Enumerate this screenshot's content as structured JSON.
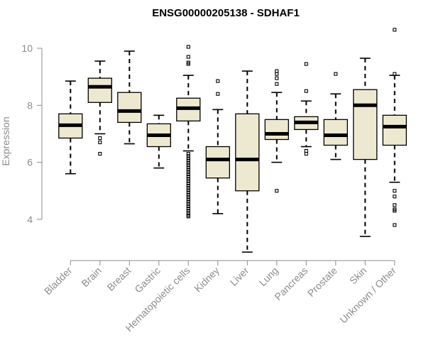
{
  "chart_data": {
    "type": "box",
    "title": "ENSG00000205138 - SDHAF1",
    "xlabel": "",
    "ylabel": "Expression",
    "ylim": [
      2.7,
      10.8
    ],
    "yticks": [
      4,
      6,
      8,
      10
    ],
    "grid": false,
    "box_color": "#ede8d0",
    "categories": [
      "Bladder",
      "Brain",
      "Breast",
      "Gastric",
      "Hematopoietic cells",
      "Kidney",
      "Liver",
      "Lung",
      "Pancreas",
      "Prostate",
      "Skin",
      "Unknown / Other"
    ],
    "series": [
      {
        "category": "Bladder",
        "min": 5.6,
        "q1": 6.85,
        "median": 7.3,
        "q3": 7.7,
        "max": 8.85,
        "outliers": []
      },
      {
        "category": "Brain",
        "min": 7.0,
        "q1": 8.1,
        "median": 8.65,
        "q3": 8.95,
        "max": 9.55,
        "outliers": [
          6.85,
          6.7,
          6.3
        ]
      },
      {
        "category": "Breast",
        "min": 6.65,
        "q1": 7.4,
        "median": 7.8,
        "q3": 8.45,
        "max": 9.9,
        "outliers": []
      },
      {
        "category": "Gastric",
        "min": 5.8,
        "q1": 6.55,
        "median": 6.95,
        "q3": 7.35,
        "max": 7.65,
        "outliers": []
      },
      {
        "category": "Hematopoietic cells",
        "min": 6.4,
        "q1": 7.45,
        "median": 7.9,
        "q3": 8.25,
        "max": 9.05,
        "outliers": [
          10.05,
          9.7,
          9.5,
          9.45,
          6.3,
          6.22,
          6.14,
          6.06,
          5.98,
          5.9,
          5.82,
          5.74,
          5.66,
          5.58,
          5.5,
          5.42,
          5.34,
          5.26,
          5.18,
          5.1,
          5.02,
          4.94,
          4.86,
          4.78,
          4.7,
          4.62,
          4.54,
          4.46,
          4.38,
          4.3,
          4.22,
          4.14,
          4.1
        ]
      },
      {
        "category": "Kidney",
        "min": 4.2,
        "q1": 5.45,
        "median": 6.1,
        "q3": 6.55,
        "max": 7.85,
        "outliers": [
          8.85,
          8.4
        ]
      },
      {
        "category": "Liver",
        "min": 2.85,
        "q1": 5.0,
        "median": 6.1,
        "q3": 7.7,
        "max": 9.2,
        "outliers": []
      },
      {
        "category": "Lung",
        "min": 6.0,
        "q1": 6.8,
        "median": 7.0,
        "q3": 7.5,
        "max": 8.45,
        "outliers": [
          9.2,
          9.1,
          8.95,
          8.75,
          5.0
        ]
      },
      {
        "category": "Pancreas",
        "min": 6.55,
        "q1": 7.15,
        "median": 7.4,
        "q3": 7.6,
        "max": 8.15,
        "outliers": [
          9.45,
          8.5,
          6.4,
          6.3
        ]
      },
      {
        "category": "Prostate",
        "min": 6.1,
        "q1": 6.6,
        "median": 6.95,
        "q3": 7.5,
        "max": 8.4,
        "outliers": [
          9.1
        ]
      },
      {
        "category": "Skin",
        "min": 3.4,
        "q1": 6.1,
        "median": 8.0,
        "q3": 8.55,
        "max": 9.65,
        "outliers": []
      },
      {
        "category": "Unknown / Other",
        "min": 5.3,
        "q1": 6.6,
        "median": 7.25,
        "q3": 7.65,
        "max": 9.05,
        "outliers": [
          10.65,
          9.1,
          5.0,
          4.8,
          4.5,
          4.35,
          4.3,
          3.8
        ]
      }
    ]
  }
}
